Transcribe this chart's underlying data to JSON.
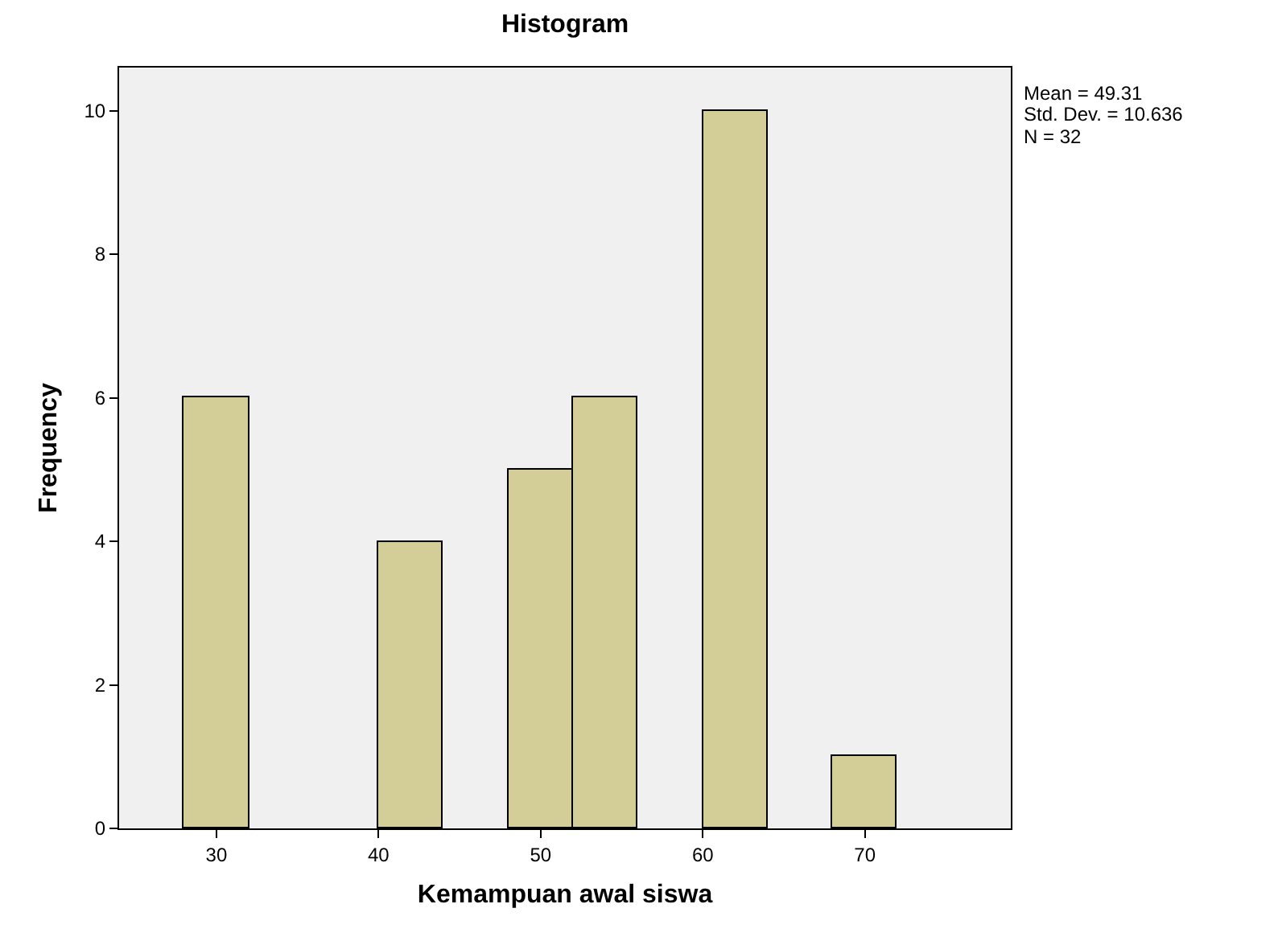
{
  "chart_data": {
    "type": "histogram",
    "title": "Histogram",
    "xlabel": "Kemampuan awal siswa",
    "ylabel": "Frequency",
    "bins": [
      28,
      32,
      36,
      40,
      44,
      48,
      52,
      56,
      60,
      64,
      68,
      72
    ],
    "values": [
      6,
      0,
      0,
      4,
      0,
      5,
      6,
      0,
      10,
      0,
      1
    ],
    "color": "#d3ce97",
    "xlim": [
      24,
      79
    ],
    "xticks": [
      30,
      40,
      50,
      60,
      70
    ],
    "ylim": [
      0,
      10.6
    ],
    "yticks": [
      0,
      2,
      4,
      6,
      8,
      10
    ],
    "grid": false,
    "annotations": [
      "Mean = 49.31",
      "Std. Dev. = 10.636",
      "N = 32"
    ]
  }
}
